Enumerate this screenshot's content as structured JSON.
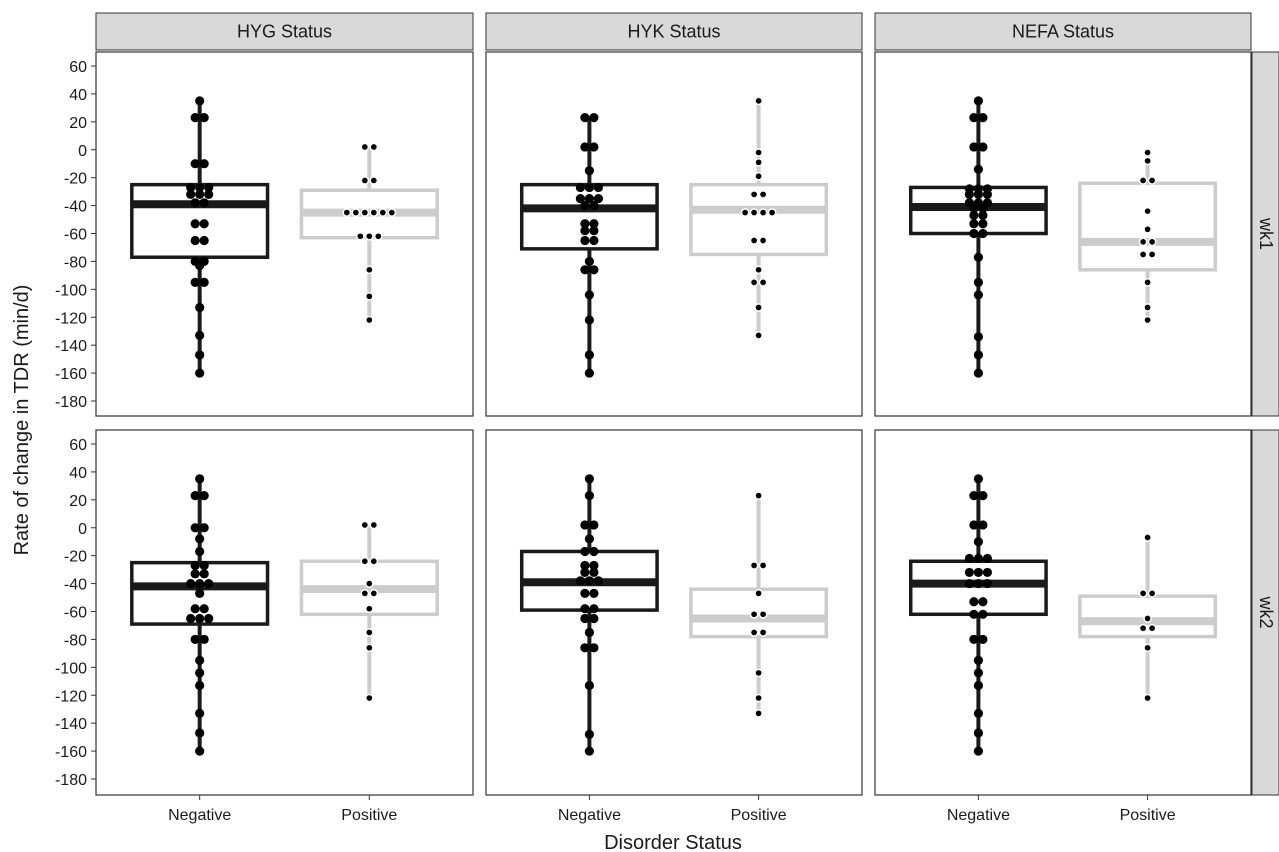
{
  "chart_data": {
    "type": "boxplot",
    "xlabel": "Disorder Status",
    "ylabel": "Rate of change in TDR (min/d)",
    "categories": [
      "Negative",
      "Positive"
    ],
    "ylim": [
      -190,
      70
    ],
    "yticks": [
      60,
      40,
      20,
      0,
      -20,
      -40,
      -60,
      -80,
      -100,
      -120,
      -140,
      -160,
      -180
    ],
    "columns": [
      "HYG Status",
      "HYK Status",
      "NEFA Status"
    ],
    "rows": [
      "wk1",
      "wk2"
    ],
    "grid": false,
    "colors": {
      "Negative": "#1a1a1a",
      "Positive": "#cccccc",
      "strip": "#d9d9d9"
    },
    "panels": [
      {
        "column": "HYG Status",
        "row": "wk1",
        "boxes": [
          {
            "group": "Negative",
            "whisker_low": -160,
            "q1": -77,
            "median": -39,
            "q3": -25,
            "whisker_high": 35,
            "points": [
              35,
              23,
              23,
              -10,
              -10,
              -27,
              -27,
              -27,
              -32,
              -32,
              -32,
              -38,
              -38,
              -53,
              -53,
              -65,
              -65,
              -80,
              -80,
              -83,
              -95,
              -95,
              -113,
              -133,
              -147,
              -160
            ]
          },
          {
            "group": "Positive",
            "whisker_low": -122,
            "q1": -63,
            "median": -45,
            "q3": -29,
            "whisker_high": 2,
            "points": [
              2,
              2,
              -22,
              -22,
              -45,
              -45,
              -45,
              -45,
              -45,
              -45,
              -62,
              -62,
              -62,
              -86,
              -105,
              -122
            ]
          }
        ]
      },
      {
        "column": "HYK Status",
        "row": "wk1",
        "boxes": [
          {
            "group": "Negative",
            "whisker_low": -160,
            "q1": -71,
            "median": -42,
            "q3": -25,
            "whisker_high": 23,
            "points": [
              23,
              23,
              2,
              2,
              -15,
              -27,
              -27,
              -27,
              -35,
              -35,
              -35,
              -40,
              -40,
              -53,
              -53,
              -58,
              -58,
              -65,
              -65,
              -80,
              -86,
              -86,
              -104,
              -122,
              -147,
              -160
            ]
          },
          {
            "group": "Positive",
            "whisker_low": -133,
            "q1": -75,
            "median": -43,
            "q3": -25,
            "whisker_high": 35,
            "points": [
              35,
              -2,
              -9,
              -19,
              -32,
              -32,
              -45,
              -45,
              -45,
              -45,
              -65,
              -65,
              -86,
              -95,
              -95,
              -113,
              -133
            ]
          }
        ]
      },
      {
        "column": "NEFA Status",
        "row": "wk1",
        "boxes": [
          {
            "group": "Negative",
            "whisker_low": -160,
            "q1": -60,
            "median": -41,
            "q3": -27,
            "whisker_high": 35,
            "points": [
              35,
              23,
              23,
              2,
              2,
              -14,
              -28,
              -28,
              -28,
              -32,
              -32,
              -32,
              -38,
              -38,
              -38,
              -42,
              -42,
              -47,
              -47,
              -53,
              -53,
              -60,
              -60,
              -77,
              -95,
              -104,
              -134,
              -147,
              -160
            ]
          },
          {
            "group": "Positive",
            "whisker_low": -122,
            "q1": -86,
            "median": -66,
            "q3": -24,
            "whisker_high": -2,
            "points": [
              -2,
              -8,
              -22,
              -22,
              -44,
              -57,
              -66,
              -66,
              -75,
              -75,
              -95,
              -113,
              -122
            ]
          }
        ]
      },
      {
        "column": "HYG Status",
        "row": "wk2",
        "boxes": [
          {
            "group": "Negative",
            "whisker_low": -160,
            "q1": -69,
            "median": -42,
            "q3": -25,
            "whisker_high": 35,
            "points": [
              35,
              23,
              23,
              0,
              0,
              -8,
              -17,
              -27,
              -27,
              -33,
              -33,
              -40,
              -40,
              -40,
              -47,
              -58,
              -58,
              -65,
              -65,
              -65,
              -80,
              -80,
              -95,
              -104,
              -113,
              -133,
              -147,
              -160
            ]
          },
          {
            "group": "Positive",
            "whisker_low": -122,
            "q1": -62,
            "median": -44,
            "q3": -24,
            "whisker_high": 2,
            "points": [
              2,
              2,
              -24,
              -24,
              -40,
              -47,
              -47,
              -58,
              -75,
              -86,
              -122
            ]
          }
        ]
      },
      {
        "column": "HYK Status",
        "row": "wk2",
        "boxes": [
          {
            "group": "Negative",
            "whisker_low": -160,
            "q1": -59,
            "median": -39,
            "q3": -17,
            "whisker_high": 35,
            "points": [
              35,
              23,
              2,
              2,
              -8,
              -17,
              -17,
              -27,
              -27,
              -32,
              -32,
              -38,
              -38,
              -38,
              -47,
              -47,
              -58,
              -58,
              -65,
              -65,
              -75,
              -86,
              -86,
              -113,
              -148,
              -160
            ]
          },
          {
            "group": "Positive",
            "whisker_low": -133,
            "q1": -78,
            "median": -65,
            "q3": -44,
            "whisker_high": 23,
            "points": [
              23,
              -27,
              -27,
              -47,
              -62,
              -62,
              -75,
              -75,
              -104,
              -122,
              -133
            ]
          }
        ]
      },
      {
        "column": "NEFA Status",
        "row": "wk2",
        "boxes": [
          {
            "group": "Negative",
            "whisker_low": -160,
            "q1": -62,
            "median": -40,
            "q3": -24,
            "whisker_high": 35,
            "points": [
              35,
              23,
              23,
              2,
              2,
              -10,
              -22,
              -22,
              -22,
              -32,
              -32,
              -32,
              -40,
              -40,
              -40,
              -53,
              -53,
              -62,
              -62,
              -80,
              -80,
              -95,
              -104,
              -113,
              -133,
              -147,
              -160
            ]
          },
          {
            "group": "Positive",
            "whisker_low": -122,
            "q1": -78,
            "median": -67,
            "q3": -49,
            "whisker_high": -7,
            "points": [
              -7,
              -47,
              -47,
              -65,
              -72,
              -72,
              -86,
              -122
            ]
          }
        ]
      }
    ]
  }
}
